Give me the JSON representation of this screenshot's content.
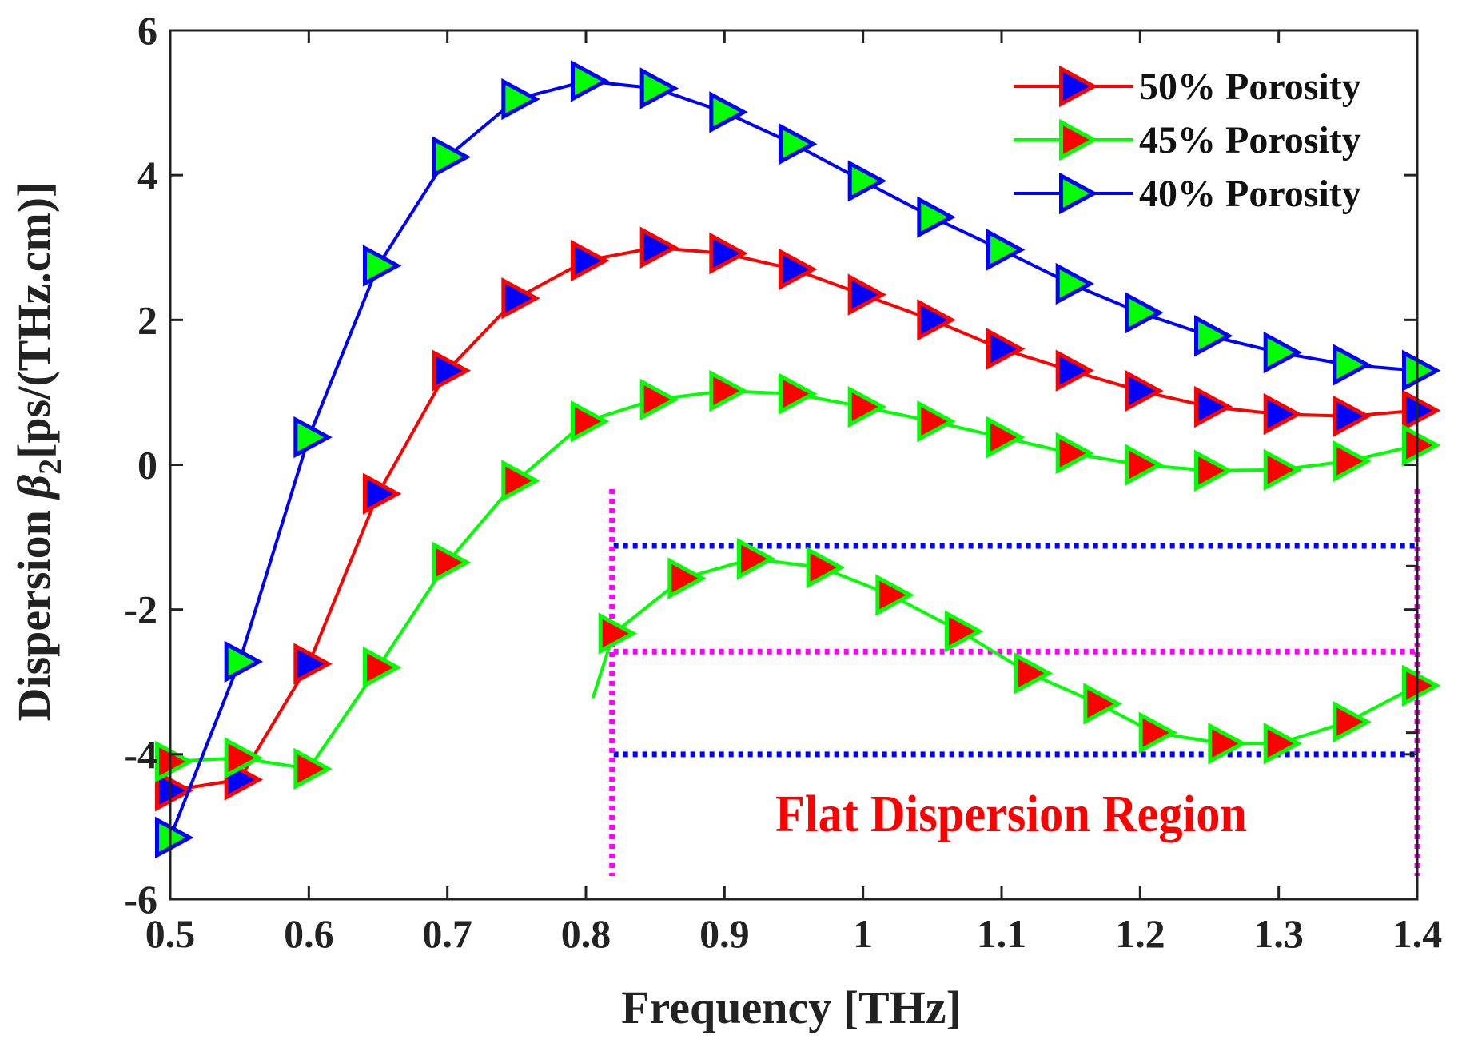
{
  "chart_data": {
    "type": "line",
    "xlabel": "Frequency [THz]",
    "ylabel": "Dispersion β2[ps/(THz.cm)]",
    "ylabel_prefix": "Dispersion ",
    "ylabel_symbol": "β",
    "ylabel_sub": "2",
    "ylabel_suffix": "[ps/(THz.cm)]",
    "xlim": [
      0.5,
      1.4
    ],
    "ylim": [
      -6,
      6
    ],
    "xticks": [
      0.5,
      0.6,
      0.7,
      0.8,
      0.9,
      1,
      1.1,
      1.2,
      1.3,
      1.4
    ],
    "xtick_labels": [
      "0.5",
      "0.6",
      "0.7",
      "0.8",
      "0.9",
      "1",
      "1.1",
      "1.2",
      "1.3",
      "1.4"
    ],
    "yticks": [
      -6,
      -4,
      -2,
      0,
      2,
      4,
      6
    ],
    "ytick_labels": [
      "-6",
      "-4",
      "-2",
      "0",
      "2",
      "4",
      "6"
    ],
    "grid": false,
    "legend_position": "top-right",
    "x": [
      0.5,
      0.55,
      0.6,
      0.65,
      0.7,
      0.75,
      0.8,
      0.85,
      0.9,
      0.95,
      1.0,
      1.05,
      1.1,
      1.15,
      1.2,
      1.25,
      1.3,
      1.35,
      1.4
    ],
    "series": [
      {
        "name": "50% Porosity",
        "line_color": "#ff0000",
        "marker_face": "#0000ff",
        "marker_edge": "#ff0000",
        "values": [
          -4.5,
          -4.35,
          -2.75,
          -0.4,
          1.3,
          2.3,
          2.82,
          3.0,
          2.92,
          2.7,
          2.35,
          2.0,
          1.6,
          1.3,
          1.02,
          0.8,
          0.7,
          0.67,
          0.75
        ]
      },
      {
        "name": "45% Porosity",
        "line_color": "#00ff00",
        "marker_face": "#ff0000",
        "marker_edge": "#00ff00",
        "values": [
          -4.1,
          -4.05,
          -4.2,
          -2.8,
          -1.35,
          -0.22,
          0.6,
          0.9,
          1.02,
          0.98,
          0.8,
          0.6,
          0.38,
          0.16,
          0.0,
          -0.08,
          -0.07,
          0.05,
          0.27
        ]
      },
      {
        "name": "40% Porosity",
        "line_color": "#0000ff",
        "marker_face": "#00ff00",
        "marker_edge": "#0000ff",
        "values": [
          -5.15,
          -2.72,
          0.38,
          2.75,
          4.25,
          5.05,
          5.3,
          5.2,
          4.87,
          4.43,
          3.92,
          3.42,
          2.97,
          2.5,
          2.1,
          1.78,
          1.55,
          1.38,
          1.3
        ]
      }
    ],
    "inset": {
      "label": "Flat Dispersion Region",
      "description_series": "45% Porosity (zoomed)",
      "x": [
        0.82,
        0.87,
        0.92,
        0.97,
        1.02,
        1.07,
        1.12,
        1.17,
        1.21,
        1.26,
        1.3,
        1.35,
        1.4
      ],
      "y_display": [
        -2.33,
        -1.57,
        -1.3,
        -1.42,
        -1.8,
        -2.3,
        -2.88,
        -3.3,
        -3.7,
        -3.85,
        -3.85,
        -3.55,
        -3.05
      ],
      "line_color": "#00ff00",
      "marker_face": "#ff0000",
      "marker_edge": "#00ff00",
      "dotted_blue_levels": [
        -1.12,
        -4.0
      ],
      "dotted_magenta_level": -2.58,
      "dotted_magenta_x": [
        0.82,
        1.4
      ]
    }
  }
}
